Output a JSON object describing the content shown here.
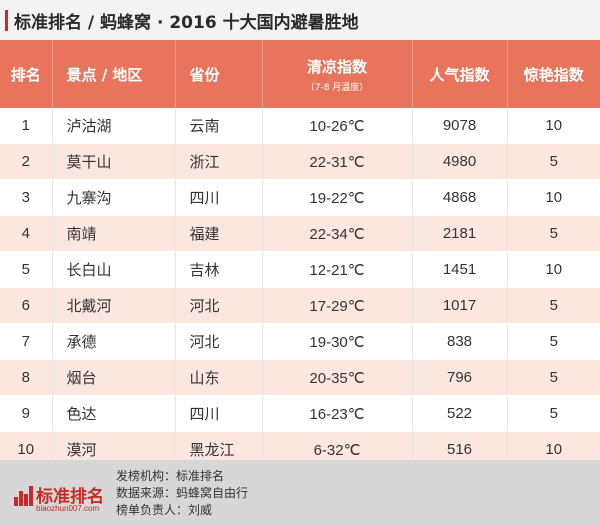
{
  "title": "标准排名 / 蚂蜂窝 · 2016 十大国内避暑胜地",
  "table": {
    "headers": {
      "rank": "排名",
      "spot": "景点 / 地区",
      "province": "省份",
      "cool": "清凉指数",
      "cool_sub": "（7-8 月温度）",
      "popularity": "人气指数",
      "amazing": "惊艳指数"
    },
    "rows": [
      {
        "rank": "1",
        "spot": "泸沽湖",
        "province": "云南",
        "temp": "10-26℃",
        "popularity": "9078",
        "amazing": "10"
      },
      {
        "rank": "2",
        "spot": "莫干山",
        "province": "浙江",
        "temp": "22-31℃",
        "popularity": "4980",
        "amazing": "5"
      },
      {
        "rank": "3",
        "spot": "九寨沟",
        "province": "四川",
        "temp": "19-22℃",
        "popularity": "4868",
        "amazing": "10"
      },
      {
        "rank": "4",
        "spot": "南靖",
        "province": "福建",
        "temp": "22-34℃",
        "popularity": "2181",
        "amazing": "5"
      },
      {
        "rank": "5",
        "spot": "长白山",
        "province": "吉林",
        "temp": "12-21℃",
        "popularity": "1451",
        "amazing": "10"
      },
      {
        "rank": "6",
        "spot": "北戴河",
        "province": "河北",
        "temp": "17-29℃",
        "popularity": "1017",
        "amazing": "5"
      },
      {
        "rank": "7",
        "spot": "承德",
        "province": "河北",
        "temp": "19-30℃",
        "popularity": "838",
        "amazing": "5"
      },
      {
        "rank": "8",
        "spot": "烟台",
        "province": "山东",
        "temp": "20-35℃",
        "popularity": "796",
        "amazing": "5"
      },
      {
        "rank": "9",
        "spot": "色达",
        "province": "四川",
        "temp": "16-23℃",
        "popularity": "522",
        "amazing": "5"
      },
      {
        "rank": "10",
        "spot": "漠河",
        "province": "黑龙江",
        "temp": "6-32℃",
        "popularity": "516",
        "amazing": "10"
      }
    ]
  },
  "footer": {
    "logo_name": "标准排名",
    "logo_url": "biaozhun007.com",
    "publisher": "发榜机构：标准排名",
    "source": "数据来源：蚂蜂窝自由行",
    "editor": "榜单负责人：刘威"
  },
  "colors": {
    "header_bg": "#e8745c",
    "row_alt_bg": "#fce7e0",
    "accent": "#c82a26",
    "footer_bg": "#d7d7d7"
  }
}
